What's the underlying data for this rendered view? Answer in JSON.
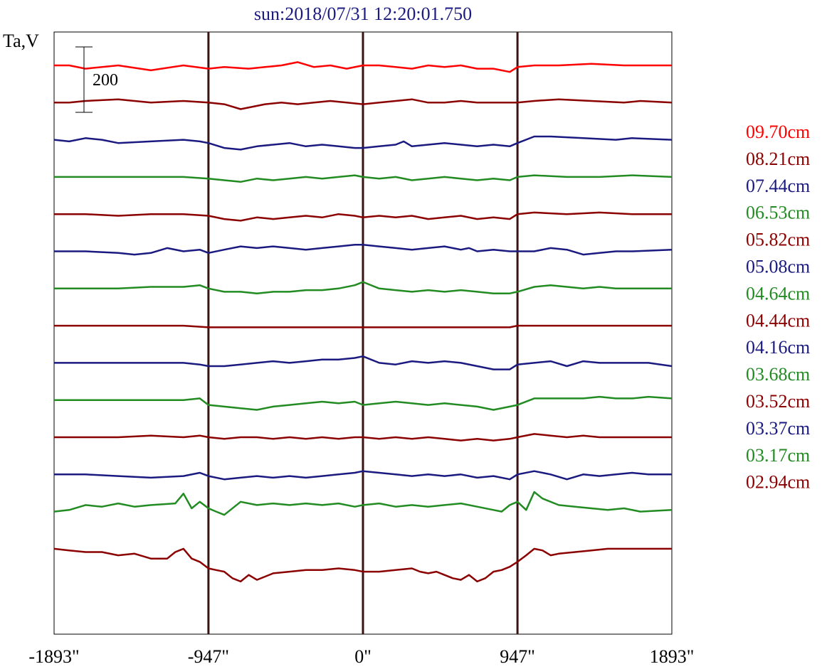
{
  "chart_data": {
    "type": "line",
    "title": "sun:2018/07/31 12:20:01.750",
    "ylabel": "Ta,V",
    "xlim": [
      -1893,
      1893
    ],
    "x_ticks": [
      {
        "value": -1893,
        "label": "-1893\""
      },
      {
        "value": -947,
        "label": "-947\""
      },
      {
        "value": 0,
        "label": "0\""
      },
      {
        "value": 947,
        "label": "947\""
      },
      {
        "value": 1893,
        "label": "1893\""
      }
    ],
    "vertical_markers": [
      -947,
      0,
      947
    ],
    "scale_bar": {
      "label": "200",
      "value": 200
    },
    "grid": false,
    "legend_position": "right",
    "series": [
      {
        "name": "09.70cm",
        "color": "#ff0000",
        "offset": 1400,
        "x": [
          -1893,
          -1800,
          -1700,
          -1500,
          -1300,
          -1100,
          -947,
          -850,
          -700,
          -600,
          -500,
          -400,
          -300,
          -200,
          -100,
          0,
          100,
          200,
          300,
          400,
          500,
          600,
          700,
          800,
          900,
          947,
          1050,
          1200,
          1400,
          1600,
          1700,
          1893
        ],
        "y": [
          0,
          0,
          -10,
          0,
          -15,
          0,
          -10,
          -5,
          -10,
          -5,
          0,
          10,
          -5,
          0,
          -10,
          0,
          0,
          -5,
          -10,
          0,
          -5,
          0,
          -10,
          -10,
          -20,
          -5,
          0,
          0,
          5,
          0,
          0,
          0
        ]
      },
      {
        "name": "08.21cm",
        "color": "#8b0000",
        "offset": 1300,
        "x": [
          -1893,
          -1800,
          -1700,
          -1500,
          -1300,
          -1100,
          -947,
          -850,
          -750,
          -600,
          -500,
          -400,
          -300,
          -200,
          -100,
          0,
          100,
          200,
          300,
          400,
          500,
          600,
          700,
          800,
          900,
          947,
          1050,
          1200,
          1400,
          1600,
          1700,
          1893
        ],
        "y": [
          0,
          0,
          5,
          10,
          0,
          5,
          0,
          -5,
          -20,
          -5,
          0,
          -5,
          0,
          5,
          0,
          -5,
          0,
          5,
          10,
          0,
          0,
          5,
          0,
          0,
          0,
          0,
          5,
          10,
          5,
          0,
          5,
          0
        ]
      },
      {
        "name": "07.44cm",
        "color": "#1a1a80",
        "offset": 1200,
        "x": [
          -1893,
          -1800,
          -1700,
          -1600,
          -1500,
          -1300,
          -1100,
          -1000,
          -947,
          -850,
          -750,
          -650,
          -550,
          -450,
          -350,
          -250,
          -150,
          -50,
          0,
          100,
          200,
          250,
          300,
          400,
          500,
          600,
          700,
          800,
          900,
          947,
          1050,
          1150,
          1350,
          1550,
          1650,
          1893
        ],
        "y": [
          0,
          -5,
          5,
          0,
          -10,
          -5,
          0,
          -5,
          -10,
          -25,
          -30,
          -20,
          -15,
          -10,
          -20,
          -15,
          -20,
          -25,
          -25,
          -20,
          -15,
          -5,
          -20,
          -15,
          -10,
          -15,
          -20,
          -15,
          -20,
          -10,
          10,
          10,
          5,
          0,
          5,
          0
        ]
      },
      {
        "name": "06.53cm",
        "color": "#228b22",
        "offset": 1100,
        "x": [
          -1893,
          -1700,
          -1500,
          -1300,
          -1100,
          -947,
          -850,
          -750,
          -650,
          -550,
          -450,
          -350,
          -250,
          -150,
          -50,
          0,
          100,
          200,
          300,
          400,
          500,
          600,
          700,
          800,
          900,
          947,
          1050,
          1250,
          1450,
          1650,
          1893
        ],
        "y": [
          0,
          0,
          0,
          0,
          0,
          -5,
          -10,
          -15,
          -5,
          -10,
          -5,
          0,
          -5,
          0,
          5,
          0,
          -5,
          0,
          -10,
          -5,
          0,
          -5,
          -10,
          -5,
          -10,
          0,
          5,
          0,
          0,
          5,
          0
        ]
      },
      {
        "name": "05.82cm",
        "color": "#8b0000",
        "offset": 1000,
        "x": [
          -1893,
          -1700,
          -1500,
          -1300,
          -1100,
          -947,
          -850,
          -750,
          -650,
          -550,
          -450,
          -350,
          -250,
          -150,
          -50,
          0,
          100,
          200,
          300,
          400,
          500,
          600,
          700,
          800,
          900,
          947,
          1050,
          1250,
          1450,
          1650,
          1893
        ],
        "y": [
          0,
          0,
          -5,
          0,
          0,
          -5,
          -15,
          -20,
          -10,
          -15,
          -10,
          -5,
          -10,
          0,
          -5,
          -10,
          -5,
          -10,
          -5,
          -15,
          -10,
          -5,
          -15,
          -10,
          -15,
          0,
          5,
          0,
          5,
          0,
          0
        ]
      },
      {
        "name": "05.08cm",
        "color": "#1a1a80",
        "offset": 900,
        "x": [
          -1893,
          -1700,
          -1500,
          -1400,
          -1300,
          -1200,
          -1100,
          -1000,
          -947,
          -850,
          -750,
          -650,
          -550,
          -450,
          -350,
          -250,
          -150,
          -50,
          0,
          100,
          200,
          300,
          400,
          500,
          600,
          650,
          700,
          800,
          900,
          947,
          1050,
          1150,
          1250,
          1350,
          1450,
          1550,
          1650,
          1893
        ],
        "y": [
          0,
          0,
          -5,
          -10,
          -5,
          10,
          0,
          5,
          -5,
          5,
          15,
          10,
          15,
          10,
          5,
          10,
          15,
          20,
          20,
          15,
          10,
          5,
          10,
          15,
          5,
          10,
          0,
          5,
          0,
          0,
          0,
          10,
          5,
          -10,
          -5,
          0,
          0,
          5
        ]
      },
      {
        "name": "04.64cm",
        "color": "#228b22",
        "offset": 800,
        "x": [
          -1893,
          -1700,
          -1500,
          -1300,
          -1100,
          -1000,
          -947,
          -850,
          -750,
          -650,
          -550,
          -450,
          -350,
          -250,
          -150,
          -50,
          0,
          100,
          200,
          300,
          400,
          500,
          600,
          700,
          800,
          900,
          947,
          1050,
          1150,
          1250,
          1350,
          1450,
          1550,
          1650,
          1893
        ],
        "y": [
          0,
          0,
          0,
          5,
          5,
          10,
          0,
          -10,
          -10,
          -15,
          -10,
          -10,
          -5,
          -5,
          0,
          10,
          20,
          0,
          -5,
          -10,
          -5,
          -10,
          -5,
          -10,
          -15,
          -15,
          -10,
          5,
          10,
          5,
          0,
          5,
          0,
          0,
          0
        ]
      },
      {
        "name": "04.44cm",
        "color": "#8b0000",
        "offset": 700,
        "x": [
          -1893,
          -1500,
          -1100,
          -947,
          -500,
          0,
          500,
          900,
          947,
          1300,
          1893
        ],
        "y": [
          0,
          0,
          0,
          -5,
          -5,
          -5,
          -5,
          -5,
          0,
          0,
          0
        ]
      },
      {
        "name": "04.16cm",
        "color": "#1a1a80",
        "offset": 600,
        "x": [
          -1893,
          -1700,
          -1500,
          -1300,
          -1100,
          -1000,
          -947,
          -850,
          -750,
          -650,
          -550,
          -450,
          -350,
          -250,
          -150,
          -50,
          0,
          100,
          200,
          300,
          400,
          500,
          600,
          700,
          800,
          900,
          947,
          1050,
          1150,
          1250,
          1350,
          1450,
          1550,
          1650,
          1750,
          1893
        ],
        "y": [
          0,
          0,
          0,
          0,
          0,
          -5,
          -10,
          -10,
          -5,
          0,
          5,
          0,
          5,
          10,
          10,
          15,
          20,
          0,
          -5,
          5,
          0,
          5,
          0,
          -10,
          -20,
          -20,
          -5,
          0,
          5,
          -10,
          5,
          0,
          0,
          0,
          0,
          -10
        ]
      },
      {
        "name": "03.68cm",
        "color": "#228b22",
        "offset": 500,
        "x": [
          -1893,
          -1700,
          -1500,
          -1300,
          -1100,
          -1000,
          -947,
          -850,
          -750,
          -650,
          -550,
          -450,
          -350,
          -250,
          -150,
          -50,
          0,
          100,
          200,
          300,
          400,
          500,
          600,
          700,
          800,
          900,
          947,
          1050,
          1150,
          1250,
          1350,
          1450,
          1550,
          1650,
          1750,
          1893
        ],
        "y": [
          0,
          0,
          0,
          0,
          0,
          5,
          -15,
          -20,
          -25,
          -30,
          -20,
          -15,
          -10,
          -5,
          -10,
          -5,
          -15,
          -10,
          -5,
          -10,
          -15,
          -10,
          -15,
          -20,
          -30,
          -20,
          -15,
          5,
          5,
          5,
          5,
          10,
          5,
          5,
          10,
          5
        ]
      },
      {
        "name": "03.52cm",
        "color": "#8b0000",
        "offset": 400,
        "x": [
          -1893,
          -1700,
          -1500,
          -1300,
          -1100,
          -1000,
          -947,
          -850,
          -750,
          -650,
          -550,
          -450,
          -350,
          -250,
          -150,
          -50,
          0,
          100,
          200,
          300,
          400,
          500,
          600,
          700,
          800,
          900,
          947,
          1050,
          1150,
          1250,
          1350,
          1450,
          1550,
          1650,
          1750,
          1893
        ],
        "y": [
          0,
          0,
          0,
          5,
          0,
          5,
          0,
          -5,
          0,
          0,
          -5,
          0,
          -5,
          0,
          -5,
          0,
          0,
          -5,
          0,
          -5,
          0,
          -5,
          -10,
          -5,
          -10,
          -5,
          0,
          10,
          5,
          0,
          5,
          0,
          0,
          0,
          0,
          0
        ]
      },
      {
        "name": "03.37cm",
        "color": "#1a1a80",
        "offset": 300,
        "x": [
          -1893,
          -1700,
          -1500,
          -1300,
          -1100,
          -1000,
          -947,
          -850,
          -750,
          -650,
          -550,
          -450,
          -350,
          -250,
          -150,
          -50,
          0,
          100,
          200,
          300,
          400,
          500,
          600,
          700,
          800,
          900,
          947,
          1050,
          1150,
          1250,
          1350,
          1450,
          1550,
          1650,
          1750,
          1893
        ],
        "y": [
          0,
          0,
          -5,
          -10,
          -5,
          5,
          -5,
          -15,
          -10,
          -5,
          -10,
          -5,
          -10,
          -5,
          0,
          5,
          10,
          5,
          0,
          -5,
          0,
          -5,
          0,
          -10,
          -5,
          -15,
          0,
          10,
          0,
          -15,
          0,
          -5,
          0,
          5,
          0,
          0
        ]
      },
      {
        "name": "03.17cm",
        "color": "#228b22",
        "offset": 200,
        "x": [
          -1893,
          -1800,
          -1700,
          -1600,
          -1500,
          -1400,
          -1300,
          -1150,
          -1100,
          -1050,
          -1000,
          -947,
          -900,
          -850,
          -750,
          -650,
          -550,
          -450,
          -350,
          -250,
          -150,
          -50,
          0,
          100,
          200,
          300,
          400,
          500,
          600,
          700,
          800,
          850,
          900,
          947,
          1000,
          1050,
          1100,
          1200,
          1300,
          1400,
          1500,
          1600,
          1700,
          1893
        ],
        "y": [
          0,
          5,
          20,
          15,
          25,
          15,
          20,
          25,
          55,
          10,
          30,
          10,
          0,
          -10,
          30,
          20,
          25,
          20,
          25,
          20,
          25,
          15,
          20,
          25,
          15,
          20,
          15,
          20,
          25,
          15,
          5,
          0,
          20,
          30,
          5,
          60,
          40,
          20,
          15,
          10,
          5,
          10,
          0,
          5
        ]
      },
      {
        "name": "02.94cm",
        "color": "#8b0000",
        "offset": 100,
        "x": [
          -1893,
          -1800,
          -1700,
          -1600,
          -1500,
          -1400,
          -1300,
          -1200,
          -1150,
          -1100,
          -1050,
          -1000,
          -947,
          -900,
          -850,
          -800,
          -750,
          -700,
          -650,
          -550,
          -450,
          -350,
          -250,
          -150,
          -50,
          0,
          100,
          200,
          300,
          350,
          400,
          450,
          500,
          550,
          600,
          650,
          700,
          750,
          800,
          850,
          900,
          947,
          1000,
          1050,
          1100,
          1150,
          1200,
          1300,
          1400,
          1500,
          1600,
          1700,
          1800,
          1893
        ],
        "y": [
          0,
          -5,
          -10,
          -10,
          -20,
          -15,
          -30,
          -30,
          -10,
          0,
          -30,
          -40,
          -60,
          -65,
          -70,
          -90,
          -100,
          -80,
          -95,
          -75,
          -70,
          -65,
          -65,
          -60,
          -65,
          -70,
          -70,
          -65,
          -60,
          -70,
          -75,
          -70,
          -80,
          -90,
          -95,
          -80,
          -100,
          -90,
          -70,
          -65,
          -55,
          -40,
          -20,
          0,
          -5,
          -20,
          -15,
          -10,
          -5,
          0,
          0,
          0,
          0,
          0
        ]
      }
    ]
  }
}
